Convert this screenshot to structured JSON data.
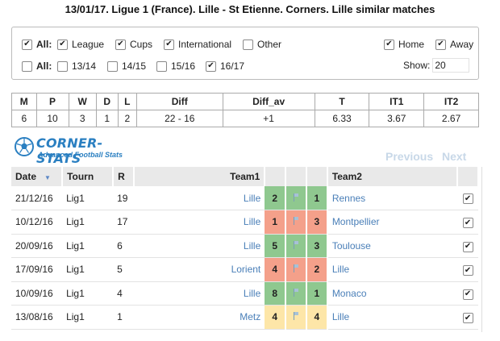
{
  "title": "13/01/17.  Ligue 1 (France).  Lille - St Etienne. Corners. Lille similar matches",
  "filters": {
    "row1": [
      {
        "label": "All:",
        "checked": true,
        "bold": true
      },
      {
        "label": "League",
        "checked": true
      },
      {
        "label": "Cups",
        "checked": true
      },
      {
        "label": "International",
        "checked": true
      },
      {
        "label": "Other",
        "checked": false
      }
    ],
    "row2": [
      {
        "label": "All:",
        "checked": false,
        "bold": true
      },
      {
        "label": "13/14",
        "checked": false
      },
      {
        "label": "14/15",
        "checked": false
      },
      {
        "label": "15/16",
        "checked": false
      },
      {
        "label": "16/17",
        "checked": true
      }
    ],
    "home": {
      "label": "Home",
      "checked": true
    },
    "away": {
      "label": "Away",
      "checked": true
    },
    "show_label": "Show:",
    "show_value": "20"
  },
  "stats": {
    "headers": [
      "M",
      "P",
      "W",
      "D",
      "L",
      "Diff",
      "Diff_av",
      "T",
      "IT1",
      "IT2"
    ],
    "values": [
      "6",
      "10",
      "3",
      "1",
      "2",
      "22 - 16",
      "+1",
      "6.33",
      "3.67",
      "2.67"
    ]
  },
  "logo": {
    "name": "CORNER-STATS",
    "tagline": "Advanced Football Stats"
  },
  "pager": {
    "previous": "Previous",
    "next": "Next"
  },
  "matches": {
    "headers": {
      "date": "Date",
      "sort_icon": "▼",
      "tourn": "Tourn",
      "round": "R",
      "team1": "Team1",
      "team2": "Team2"
    },
    "rows": [
      {
        "date": "21/12/16",
        "tourn": "Lig1",
        "round": "19",
        "team1": "Lille",
        "s1": "2",
        "s2": "1",
        "team2": "Rennes",
        "color": "green",
        "checked": true
      },
      {
        "date": "10/12/16",
        "tourn": "Lig1",
        "round": "17",
        "team1": "Lille",
        "s1": "1",
        "s2": "3",
        "team2": "Montpellier",
        "color": "red",
        "checked": true
      },
      {
        "date": "20/09/16",
        "tourn": "Lig1",
        "round": "6",
        "team1": "Lille",
        "s1": "5",
        "s2": "3",
        "team2": "Toulouse",
        "color": "green",
        "checked": true
      },
      {
        "date": "17/09/16",
        "tourn": "Lig1",
        "round": "5",
        "team1": "Lorient",
        "s1": "4",
        "s2": "2",
        "team2": "Lille",
        "color": "red",
        "checked": true
      },
      {
        "date": "10/09/16",
        "tourn": "Lig1",
        "round": "4",
        "team1": "Lille",
        "s1": "8",
        "s2": "1",
        "team2": "Monaco",
        "color": "green",
        "checked": true
      },
      {
        "date": "13/08/16",
        "tourn": "Lig1",
        "round": "1",
        "team1": "Metz",
        "s1": "4",
        "s2": "4",
        "team2": "Lille",
        "color": "yellow",
        "checked": true
      }
    ]
  }
}
